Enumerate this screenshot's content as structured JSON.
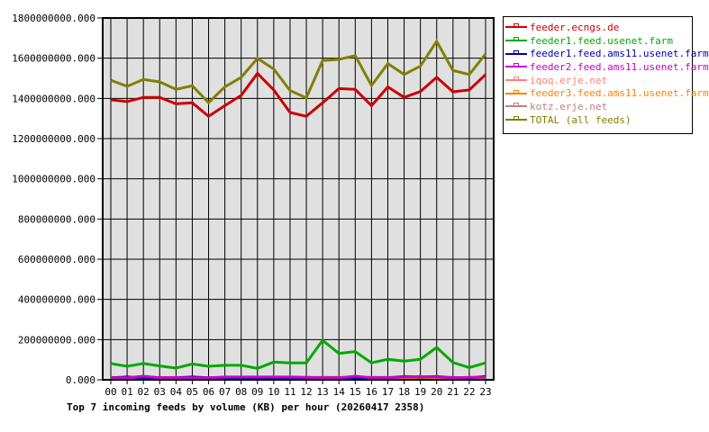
{
  "chart_data": {
    "type": "line",
    "title": "Top 7 incoming feeds by volume (KB) per hour (20260417 2358)",
    "xlabel": "",
    "ylabel": "",
    "ylim": [
      0,
      1800000000
    ],
    "yticks": [
      "0.000",
      "200000000.000",
      "400000000.000",
      "600000000.000",
      "800000000.000",
      "1000000000.000",
      "1200000000.000",
      "1400000000.000",
      "1600000000.000",
      "1800000000.000"
    ],
    "grid": true,
    "legend_position": "right",
    "categories": [
      "00",
      "01",
      "02",
      "03",
      "04",
      "05",
      "06",
      "07",
      "08",
      "09",
      "10",
      "11",
      "12",
      "13",
      "14",
      "15",
      "16",
      "17",
      "18",
      "19",
      "20",
      "21",
      "22",
      "23"
    ],
    "series": [
      {
        "name": "feeder.ecngs.de",
        "color": "#cc0000",
        "values": [
          1393000000,
          1384000000,
          1405000000,
          1405000000,
          1373000000,
          1378000000,
          1311000000,
          1364000000,
          1415000000,
          1524000000,
          1442000000,
          1330000000,
          1311000000,
          1378000000,
          1449000000,
          1445000000,
          1364000000,
          1457000000,
          1405000000,
          1434000000,
          1505000000,
          1433000000,
          1442000000,
          1519000000
        ]
      },
      {
        "name": "feeder1.feed.usenet.farm",
        "color": "#00aa00",
        "values": [
          81000000,
          67000000,
          81000000,
          69000000,
          58000000,
          79000000,
          67000000,
          72000000,
          72000000,
          57000000,
          88000000,
          84000000,
          84000000,
          196000000,
          131000000,
          140000000,
          84000000,
          102000000,
          93000000,
          102000000,
          161000000,
          86000000,
          61000000,
          84000000
        ]
      },
      {
        "name": "feeder1.feed.ams11.usenet.farm",
        "color": "#0000aa",
        "values": [
          10000000,
          14000000,
          10000000,
          10000000,
          10000000,
          14000000,
          10000000,
          10000000,
          10000000,
          10000000,
          10000000,
          10000000,
          10000000,
          10000000,
          10000000,
          10000000,
          10000000,
          10000000,
          16000000,
          14000000,
          16000000,
          10000000,
          10000000,
          16000000
        ]
      },
      {
        "name": "feeder2.feed.ams11.usenet.farm",
        "color": "#cc00cc",
        "values": [
          10000000,
          10000000,
          18000000,
          10000000,
          10000000,
          10000000,
          10000000,
          14000000,
          14000000,
          14000000,
          14000000,
          14000000,
          12000000,
          10000000,
          10000000,
          18000000,
          10000000,
          10000000,
          14000000,
          16000000,
          14000000,
          10000000,
          12000000,
          12000000
        ]
      },
      {
        "name": "iqoq.erje.net",
        "color": "#ff8080",
        "values": [
          6000000,
          6000000,
          6000000,
          8000000,
          6000000,
          6000000,
          6000000,
          6000000,
          6000000,
          6000000,
          6000000,
          6000000,
          6000000,
          6000000,
          6000000,
          6000000,
          6000000,
          6000000,
          6000000,
          6000000,
          6000000,
          6000000,
          6000000,
          6000000
        ]
      },
      {
        "name": "feeder3.feed.ams11.usenet.farm",
        "color": "#ff8000",
        "values": [
          12000000,
          10000000,
          10000000,
          10000000,
          12000000,
          10000000,
          10000000,
          10000000,
          10000000,
          10000000,
          10000000,
          10000000,
          12000000,
          12000000,
          12000000,
          10000000,
          12000000,
          12000000,
          10000000,
          10000000,
          10000000,
          12000000,
          10000000,
          10000000
        ]
      },
      {
        "name": "kotz.erje.net",
        "color": "#c08080",
        "values": [
          4000000,
          4000000,
          4000000,
          4000000,
          4000000,
          4000000,
          4000000,
          4000000,
          4000000,
          4000000,
          4000000,
          4000000,
          4000000,
          4000000,
          4000000,
          4000000,
          4000000,
          4000000,
          4000000,
          4000000,
          4000000,
          4000000,
          4000000,
          4000000
        ]
      },
      {
        "name": "TOTAL (all feeds)",
        "color": "#808000",
        "values": [
          1490000000,
          1460000000,
          1494000000,
          1482000000,
          1445000000,
          1463000000,
          1379000000,
          1457000000,
          1505000000,
          1599000000,
          1546000000,
          1439000000,
          1403000000,
          1588000000,
          1594000000,
          1613000000,
          1464000000,
          1573000000,
          1519000000,
          1561000000,
          1684000000,
          1539000000,
          1519000000,
          1621000000
        ]
      }
    ]
  },
  "legend": {
    "items": [
      {
        "label": "feeder.ecngs.de",
        "color": "#cc0000"
      },
      {
        "label": "feeder1.feed.usenet.farm",
        "color": "#00aa00"
      },
      {
        "label": "feeder1.feed.ams11.usenet.farm",
        "color": "#0000aa"
      },
      {
        "label": "feeder2.feed.ams11.usenet.farm",
        "color": "#cc00cc"
      },
      {
        "label": "iqoq.erje.net",
        "color": "#ff8080"
      },
      {
        "label": "feeder3.feed.ams11.usenet.farm",
        "color": "#ff8000"
      },
      {
        "label": "kotz.erje.net",
        "color": "#c08080"
      },
      {
        "label": "TOTAL (all feeds)",
        "color": "#808000"
      }
    ]
  },
  "colors": {
    "plot_background": "#e0e0e0",
    "grid": "#000000"
  }
}
